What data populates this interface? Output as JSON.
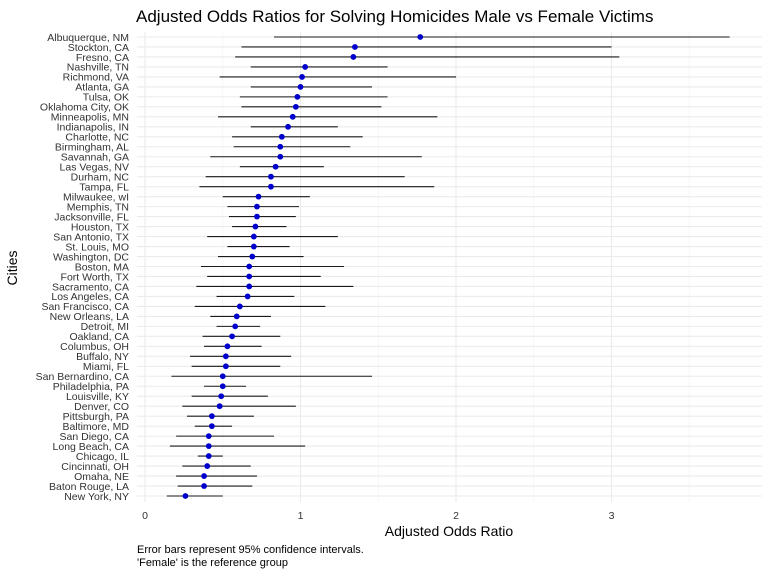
{
  "chart_data": {
    "type": "forest",
    "title": "Adjusted Odds Ratios for Solving Homicides Male vs Female Victims",
    "xlabel": "Adjusted Odds Ratio",
    "ylabel": "Cities",
    "xlim": [
      0,
      3.9
    ],
    "xticks": [
      "0",
      "1",
      "2",
      "3"
    ],
    "xtick_values": [
      0,
      1,
      2,
      3
    ],
    "grid": true,
    "point_color": "#0000cd",
    "caption": [
      "Error bars represent 95% confidence intervals.",
      "'Female' is the reference group"
    ],
    "cities": [
      {
        "name": "Albuquerque, NM",
        "or": 1.77,
        "lo": 0.83,
        "hi": 3.76
      },
      {
        "name": "Stockton, CA",
        "or": 1.35,
        "lo": 0.62,
        "hi": 3.0
      },
      {
        "name": "Fresno, CA",
        "or": 1.34,
        "lo": 0.58,
        "hi": 3.05
      },
      {
        "name": "Nashville, TN",
        "or": 1.03,
        "lo": 0.68,
        "hi": 1.56
      },
      {
        "name": "Richmond, VA",
        "or": 1.01,
        "lo": 0.48,
        "hi": 2.0
      },
      {
        "name": "Atlanta, GA",
        "or": 1.0,
        "lo": 0.68,
        "hi": 1.46
      },
      {
        "name": "Tulsa, OK",
        "or": 0.98,
        "lo": 0.61,
        "hi": 1.56
      },
      {
        "name": "Oklahoma City, OK",
        "or": 0.97,
        "lo": 0.62,
        "hi": 1.52
      },
      {
        "name": "Minneapolis, MN",
        "or": 0.95,
        "lo": 0.47,
        "hi": 1.88
      },
      {
        "name": "Indianapolis, IN",
        "or": 0.92,
        "lo": 0.68,
        "hi": 1.24
      },
      {
        "name": "Charlotte, NC",
        "or": 0.88,
        "lo": 0.56,
        "hi": 1.4
      },
      {
        "name": "Birmingham, AL",
        "or": 0.87,
        "lo": 0.57,
        "hi": 1.32
      },
      {
        "name": "Savannah, GA",
        "or": 0.87,
        "lo": 0.42,
        "hi": 1.78
      },
      {
        "name": "Las Vegas, NV",
        "or": 0.84,
        "lo": 0.61,
        "hi": 1.15
      },
      {
        "name": "Durham, NC",
        "or": 0.81,
        "lo": 0.39,
        "hi": 1.67
      },
      {
        "name": "Tampa, FL",
        "or": 0.81,
        "lo": 0.35,
        "hi": 1.86
      },
      {
        "name": "Milwaukee, wI",
        "or": 0.73,
        "lo": 0.5,
        "hi": 1.06
      },
      {
        "name": "Memphis, TN",
        "or": 0.72,
        "lo": 0.53,
        "hi": 0.99
      },
      {
        "name": "Jacksonville, FL",
        "or": 0.72,
        "lo": 0.54,
        "hi": 0.97
      },
      {
        "name": "Houston, TX",
        "or": 0.71,
        "lo": 0.56,
        "hi": 0.91
      },
      {
        "name": "San Antonio, TX",
        "or": 0.7,
        "lo": 0.4,
        "hi": 1.24
      },
      {
        "name": "St. Louis, MO",
        "or": 0.7,
        "lo": 0.53,
        "hi": 0.93
      },
      {
        "name": "Washington, DC",
        "or": 0.69,
        "lo": 0.47,
        "hi": 1.02
      },
      {
        "name": "Boston, MA",
        "or": 0.67,
        "lo": 0.36,
        "hi": 1.28
      },
      {
        "name": "Fort Worth, TX",
        "or": 0.67,
        "lo": 0.4,
        "hi": 1.13
      },
      {
        "name": "Sacramento, CA",
        "or": 0.67,
        "lo": 0.33,
        "hi": 1.34
      },
      {
        "name": "Los Angeles, CA",
        "or": 0.66,
        "lo": 0.46,
        "hi": 0.96
      },
      {
        "name": "San Francisco, CA",
        "or": 0.61,
        "lo": 0.32,
        "hi": 1.16
      },
      {
        "name": "New Orleans, LA",
        "or": 0.59,
        "lo": 0.42,
        "hi": 0.81
      },
      {
        "name": "Detroit, MI",
        "or": 0.58,
        "lo": 0.46,
        "hi": 0.74
      },
      {
        "name": "Oakland, CA",
        "or": 0.56,
        "lo": 0.37,
        "hi": 0.87
      },
      {
        "name": "Columbus, OH",
        "or": 0.53,
        "lo": 0.38,
        "hi": 0.75
      },
      {
        "name": "Buffalo, NY",
        "or": 0.52,
        "lo": 0.29,
        "hi": 0.94
      },
      {
        "name": "Miami, FL",
        "or": 0.52,
        "lo": 0.3,
        "hi": 0.87
      },
      {
        "name": "San Bernardino, CA",
        "or": 0.5,
        "lo": 0.17,
        "hi": 1.46
      },
      {
        "name": "Philadelphia, PA",
        "or": 0.5,
        "lo": 0.38,
        "hi": 0.65
      },
      {
        "name": "Louisville, KY",
        "or": 0.49,
        "lo": 0.3,
        "hi": 0.79
      },
      {
        "name": "Denver, CO",
        "or": 0.48,
        "lo": 0.24,
        "hi": 0.97
      },
      {
        "name": "Pittsburgh, PA",
        "or": 0.43,
        "lo": 0.27,
        "hi": 0.7
      },
      {
        "name": "Baltimore, MD",
        "or": 0.43,
        "lo": 0.32,
        "hi": 0.56
      },
      {
        "name": "San Diego, CA",
        "or": 0.41,
        "lo": 0.2,
        "hi": 0.83
      },
      {
        "name": "Long Beach, CA",
        "or": 0.41,
        "lo": 0.16,
        "hi": 1.03
      },
      {
        "name": "Chicago, IL",
        "or": 0.41,
        "lo": 0.34,
        "hi": 0.5
      },
      {
        "name": "Cincinnati, OH",
        "or": 0.4,
        "lo": 0.24,
        "hi": 0.68
      },
      {
        "name": "Omaha, NE",
        "or": 0.38,
        "lo": 0.2,
        "hi": 0.72
      },
      {
        "name": "Baton Rouge, LA",
        "or": 0.38,
        "lo": 0.21,
        "hi": 0.69
      },
      {
        "name": "New York, NY",
        "or": 0.26,
        "lo": 0.14,
        "hi": 0.5
      }
    ]
  }
}
